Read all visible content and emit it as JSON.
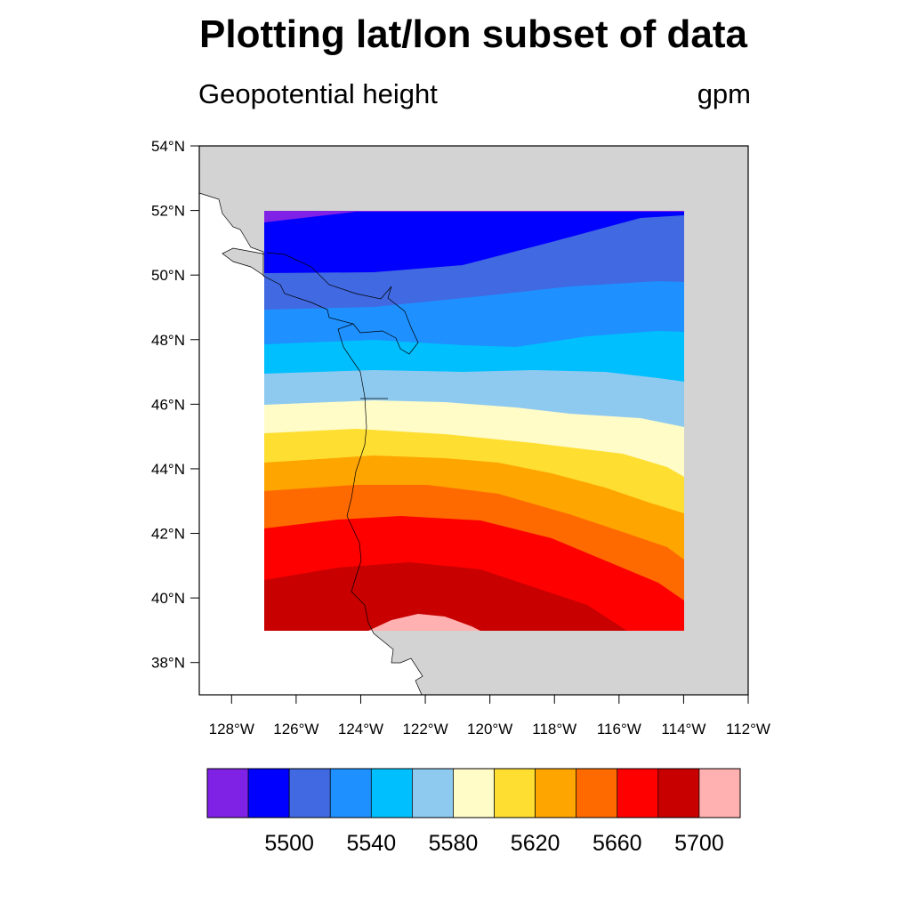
{
  "title": "Plotting lat/lon subset of data",
  "left_string": "Geopotential height",
  "right_string": "gpm",
  "map": {
    "projection": "cylindrical-equidistant",
    "lon_range": [
      -129,
      -112
    ],
    "lat_range": [
      37,
      54
    ],
    "data_lon_range": [
      -127,
      -114
    ],
    "data_lat_range": [
      39,
      52
    ],
    "land_color": "#d3d3d3",
    "ocean_color": "#ffffff"
  },
  "lon_ticks": [
    "128°W",
    "126°W",
    "124°W",
    "122°W",
    "120°W",
    "118°W",
    "116°W",
    "114°W",
    "112°W"
  ],
  "lat_ticks": [
    "38°N",
    "40°N",
    "42°N",
    "44°N",
    "46°N",
    "48°N",
    "50°N",
    "52°N",
    "54°N"
  ],
  "chart_data": {
    "type": "heatmap",
    "variable": "Geopotential height",
    "units": "gpm",
    "contour_levels": [
      5480,
      5500,
      5520,
      5540,
      5560,
      5580,
      5600,
      5620,
      5640,
      5660,
      5680,
      5700
    ],
    "colors": [
      "#8021e6",
      "#0000ff",
      "#4169e1",
      "#1e90ff",
      "#00bfff",
      "#8ecaf0",
      "#fffcc8",
      "#ffde32",
      "#ffa500",
      "#ff6a00",
      "#ff0000",
      "#c80000",
      "#ffb0b0"
    ],
    "colorbar_labels": [
      "5500",
      "5540",
      "5580",
      "5620",
      "5660",
      "5700"
    ]
  }
}
